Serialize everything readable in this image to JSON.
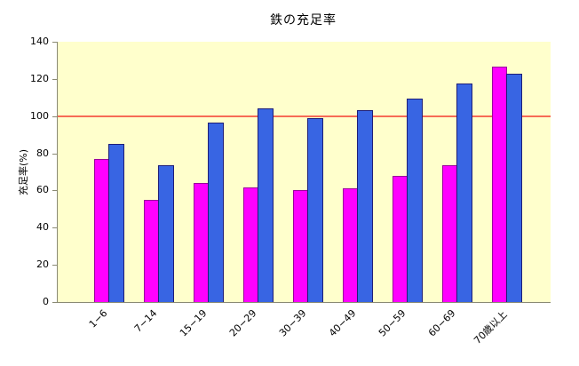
{
  "chart_data": {
    "type": "bar",
    "title": "鉄の充足率",
    "xlabel": "",
    "ylabel": "充足率(%)",
    "categories": [
      "1−6",
      "7−14",
      "15−19",
      "20−29",
      "30−39",
      "40−49",
      "50−59",
      "60−69",
      "70歳以上"
    ],
    "series": [
      {
        "name": "series-1-magenta",
        "color": "#FF00FF",
        "border_color": "#99009B",
        "values": [
          77,
          55,
          64,
          61.5,
          60,
          61,
          68,
          73.5,
          126.5
        ]
      },
      {
        "name": "series-2-blue",
        "color": "#3865E3",
        "border_color": "#1E1E78",
        "values": [
          85,
          73.5,
          96.5,
          104,
          99,
          103,
          109.5,
          117.5,
          123
        ]
      }
    ],
    "reference_line": {
      "value": 100,
      "color": "#F76B56"
    },
    "ylim": [
      0,
      140
    ],
    "yticks": [
      0,
      20,
      40,
      60,
      80,
      100,
      120,
      140
    ],
    "plot_background": "#FFFFCC",
    "axis_color": "#8A8A74",
    "grid": "off",
    "legend_position": "none"
  }
}
